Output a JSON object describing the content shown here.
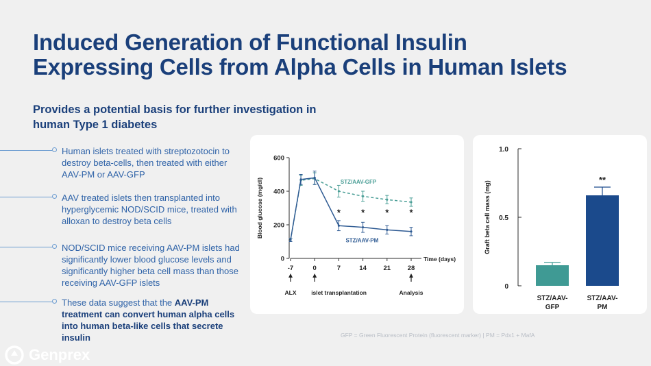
{
  "title": {
    "line1": "Induced Generation of Functional Insulin",
    "line2": "Expressing Cells from Alpha Cells in Human Islets"
  },
  "subtitle": "Provides a potential basis for further investigation in human Type 1 diabetes",
  "bullets": [
    {
      "text": "Human islets treated with streptozotocin to destroy beta-cells, then treated with either AAV-PM or AAV-GFP"
    },
    {
      "text": "AAV treated islets then transplanted into hyperglycemic NOD/SCID mice, treated with alloxan to destroy beta cells"
    },
    {
      "text": "NOD/SCID mice receiving AAV-PM islets had significantly lower blood glucose levels and significantly higher beta cell mass than those receiving AAV-GFP islets"
    },
    {
      "text_pre": "These data suggest that the ",
      "text_bold": "AAV-PM treatment can convert human alpha cells into human beta-like cells that secrete insulin"
    }
  ],
  "chart_data": [
    {
      "type": "line",
      "ylabel": "Blood glucose (mg/dl)",
      "xlabel": "Time (days)",
      "x_ticks": [
        "-7",
        "0",
        "7",
        "14",
        "21",
        "28"
      ],
      "y_ticks": [
        "0",
        "200",
        "400",
        "600"
      ],
      "ylim": [
        0,
        600
      ],
      "series": [
        {
          "name": "STZ/AAV-GFP",
          "color": "#4a9e96",
          "dashed": true,
          "x": [
            -7,
            -4,
            0,
            7,
            14,
            21,
            28
          ],
          "y": [
            110,
            465,
            475,
            400,
            370,
            350,
            335
          ],
          "err": [
            10,
            30,
            35,
            35,
            30,
            25,
            25
          ]
        },
        {
          "name": "STZ/AAV-PM",
          "color": "#2f5b93",
          "dashed": false,
          "x": [
            -7,
            -4,
            0,
            7,
            14,
            21,
            28
          ],
          "y": [
            110,
            470,
            480,
            195,
            185,
            170,
            160
          ],
          "err": [
            10,
            30,
            40,
            30,
            30,
            25,
            25
          ]
        }
      ],
      "significance": [
        {
          "x": 7,
          "label": "*"
        },
        {
          "x": 14,
          "label": "*"
        },
        {
          "x": 21,
          "label": "*"
        },
        {
          "x": 28,
          "label": "*"
        }
      ],
      "events": [
        {
          "x": -7,
          "label": "ALX"
        },
        {
          "x": 0,
          "label": "islet transplantation"
        },
        {
          "x": 28,
          "label": "Analysis"
        }
      ]
    },
    {
      "type": "bar",
      "ylabel": "Graft beta cell mass (mg)",
      "categories": [
        "STZ/AAV-GFP",
        "STZ/AAV-PM"
      ],
      "category_lines": [
        [
          "STZ/AAV-",
          "GFP"
        ],
        [
          "STZ/AAV-",
          "PM"
        ]
      ],
      "values": [
        0.15,
        0.66
      ],
      "errors": [
        0.02,
        0.06
      ],
      "colors": [
        "#3f9a94",
        "#1b4a8c"
      ],
      "annotations": [
        "",
        "**"
      ],
      "y_ticks": [
        "0",
        "0.5",
        "1.0"
      ],
      "ylim": [
        0,
        1.0
      ]
    }
  ],
  "footnote": "GFP = Green Fluorescent Protein (fluorescent marker) | PM = Pdx1 + MafA",
  "logo": {
    "name": "Genprex"
  }
}
